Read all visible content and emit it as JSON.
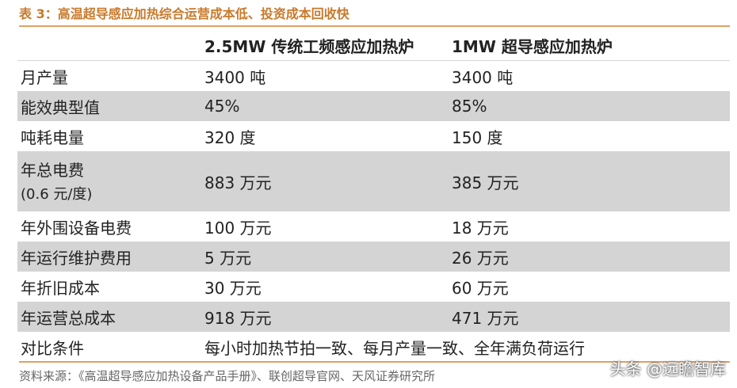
{
  "title": "表 3：高温超导感应加热综合运营成本低、投资成本回收快",
  "columns": [
    "",
    "2.5MW 传统工频感应加热炉",
    "1MW 超导感应加热炉"
  ],
  "rows": [
    {
      "label": "月产量",
      "traditional": "3400 吨",
      "superconducting": "3400 吨"
    },
    {
      "label": "能效典型值",
      "traditional": "45%",
      "superconducting": "85%"
    },
    {
      "label": "吨耗电量",
      "traditional": "320 度",
      "superconducting": "150 度"
    },
    {
      "label": "年总电费",
      "label_sub": "(0.6 元/度)",
      "traditional": "883 万元",
      "superconducting": "385 万元"
    },
    {
      "label": "年外围设备电费",
      "traditional": "100 万元",
      "superconducting": "18 万元"
    },
    {
      "label": "年运行维护费用",
      "traditional": "5 万元",
      "superconducting": "26 万元"
    },
    {
      "label": "年折旧成本",
      "traditional": "30 万元",
      "superconducting": "60 万元"
    },
    {
      "label": "年运营总成本",
      "traditional": "918 万元",
      "superconducting": "471 万元"
    }
  ],
  "comparison": {
    "label": "对比条件",
    "value": "每小时加热节拍一致、每月产量一致、全年满负荷运行"
  },
  "source": "资料来源：《高温超导感应加热设备产品手册》、联创超导官网、天风证券研究所",
  "watermark": "头条 @远瞻智库",
  "colors": {
    "title": "#c9792a",
    "rule": "#e0a062",
    "shade": "#d4d4d4"
  }
}
